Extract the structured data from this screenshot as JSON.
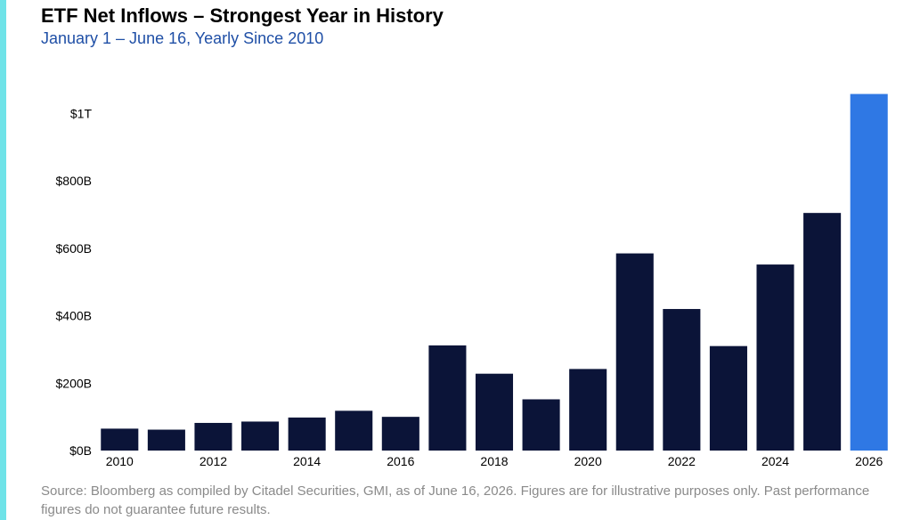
{
  "header": {
    "title": "ETF Net Inflows – Strongest Year in History",
    "subtitle": "January 1 – June 16, Yearly Since 2010"
  },
  "footnote": "Source: Bloomberg as compiled by Citadel Securities, GMI, as of June 16, 2026. Figures are for illustrative purposes only. Past performance figures do not guarantee future results.",
  "colors": {
    "accent_bar": "#6fe3e8",
    "bar_default": "#0b1438",
    "bar_highlight": "#2f78e4",
    "title": "#000000",
    "subtitle": "#1f4fa6",
    "footnote": "#8a8a8a"
  },
  "chart_data": {
    "type": "bar",
    "title": "ETF Net Inflows – Strongest Year in History",
    "subtitle": "January 1 – June 16, Yearly Since 2010",
    "xlabel": "",
    "ylabel": "",
    "categories": [
      "2010",
      "2011",
      "2012",
      "2013",
      "2014",
      "2015",
      "2016",
      "2017",
      "2018",
      "2019",
      "2020",
      "2021",
      "2022",
      "2023",
      "2024",
      "2025",
      "2026"
    ],
    "values": [
      65,
      62,
      82,
      86,
      98,
      118,
      100,
      312,
      228,
      152,
      242,
      585,
      420,
      310,
      552,
      705,
      1058
    ],
    "value_unit": "USD billions",
    "highlight_category": "2026",
    "x_tick_labels": [
      "2010",
      "2012",
      "2014",
      "2016",
      "2018",
      "2020",
      "2022",
      "2024",
      "2026"
    ],
    "y_ticks": [
      {
        "value": 0,
        "label": "$0B"
      },
      {
        "value": 200,
        "label": "$200B"
      },
      {
        "value": 400,
        "label": "$400B"
      },
      {
        "value": 600,
        "label": "$600B"
      },
      {
        "value": 800,
        "label": "$800B"
      },
      {
        "value": 1000,
        "label": "$1T"
      }
    ],
    "ylim": [
      0,
      1100
    ],
    "grid": false,
    "legend": "none"
  }
}
